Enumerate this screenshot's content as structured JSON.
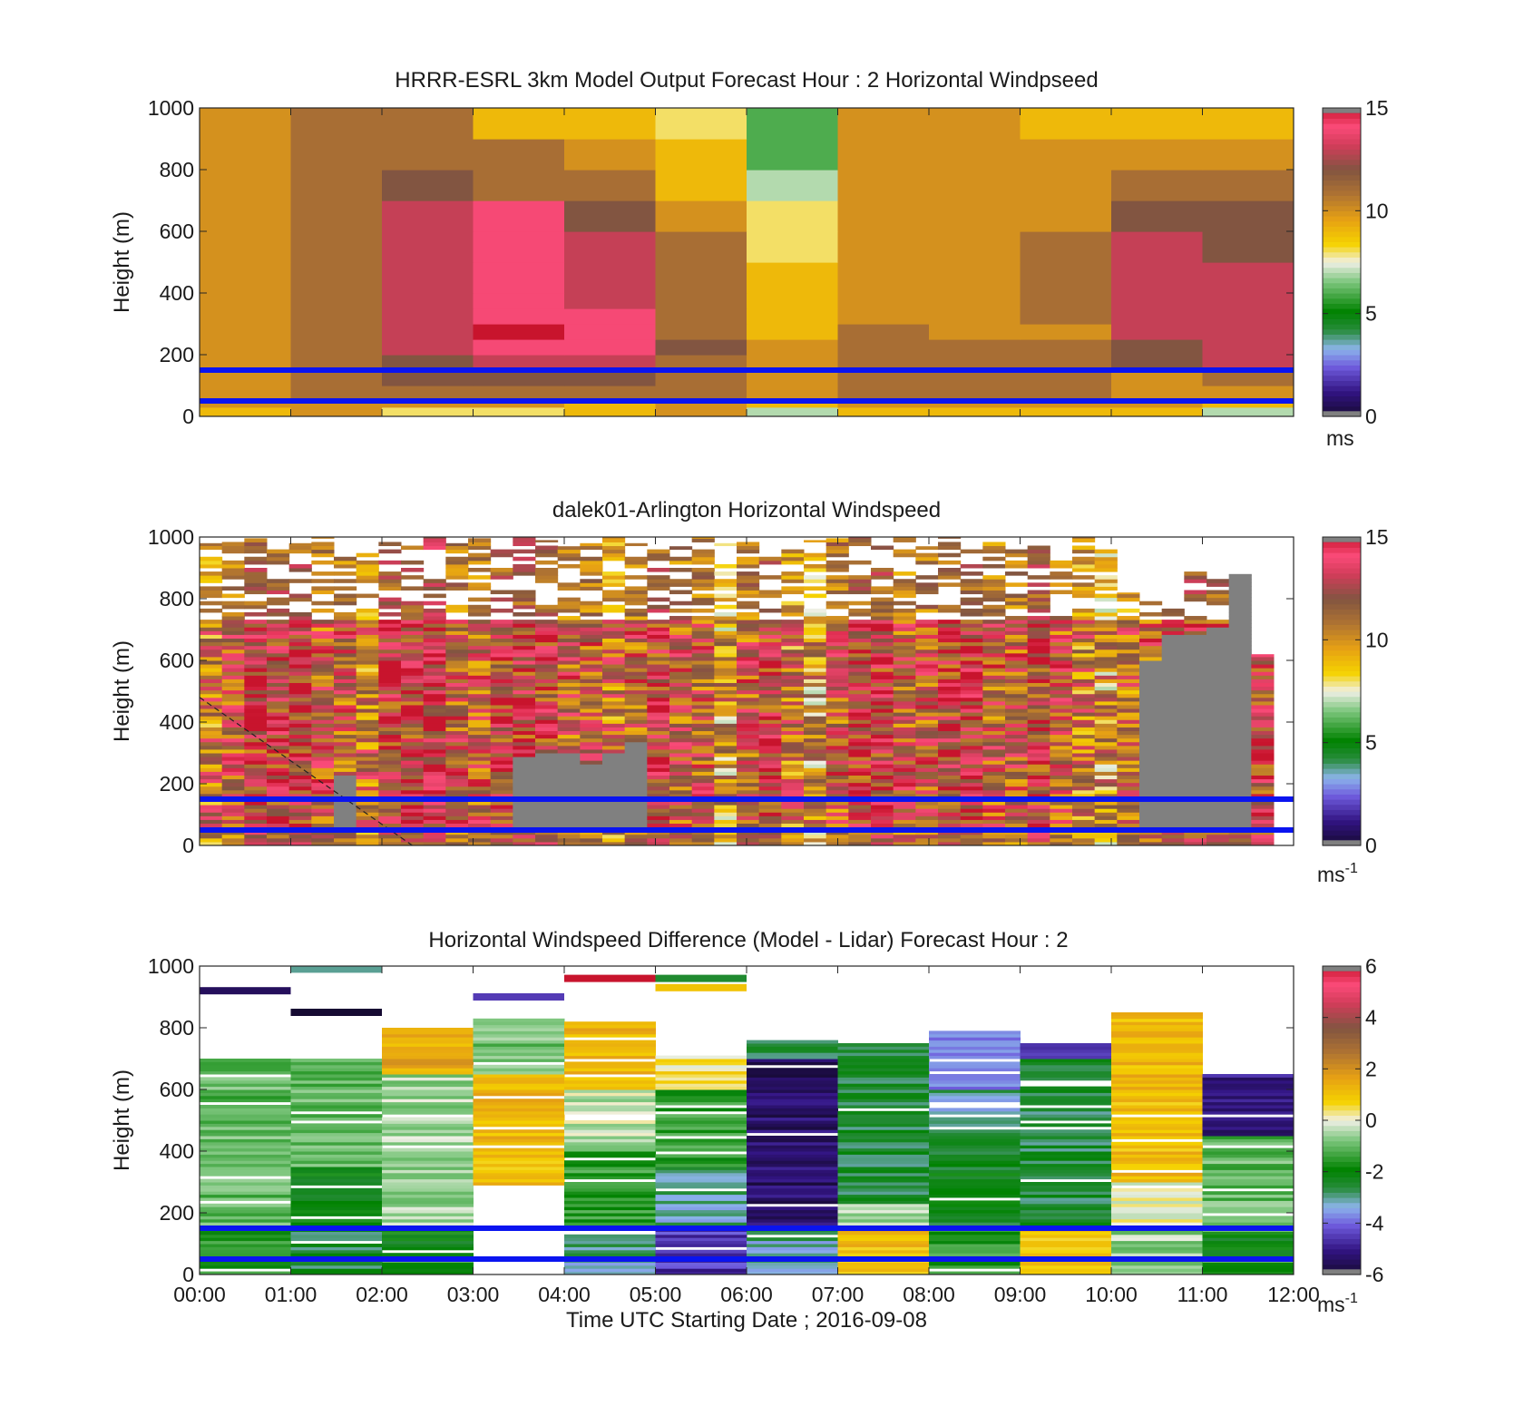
{
  "figure": {
    "xlabel": "Time UTC  Starting Date ; 2016-09-08",
    "x_ticks": [
      "00:00",
      "01:00",
      "02:00",
      "03:00",
      "04:00",
      "05:00",
      "06:00",
      "07:00",
      "08:00",
      "09:00",
      "10:00",
      "11:00",
      "12:00"
    ],
    "line_color": "#0a14f0"
  },
  "chart_data": [
    {
      "type": "heatmap",
      "title": "HRRR-ESRL 3km Model Output   Forecast Hour : 2 Horizontal Windpseed",
      "ylabel": "Height (m)",
      "y_ticks": [
        "0",
        "200",
        "400",
        "600",
        "800",
        "1000"
      ],
      "ylim": [
        0,
        1000
      ],
      "xlim": [
        "00:00",
        "12:00"
      ],
      "colorbar": {
        "ticks": [
          "0",
          "5",
          "10",
          "15"
        ],
        "range": [
          0,
          15
        ],
        "unit": "ms",
        "unit_sup": ""
      },
      "horizontal_lines_m": [
        150,
        50
      ],
      "x_bins": [
        "00:00",
        "01:00",
        "02:00",
        "03:00",
        "04:00",
        "05:00",
        "06:00",
        "07:00",
        "08:00",
        "09:00",
        "10:00",
        "11:00"
      ],
      "y_edges_m": [
        0,
        30,
        50,
        100,
        150,
        200,
        250,
        300,
        350,
        400,
        500,
        600,
        700,
        800,
        900,
        1000
      ],
      "values_ms": [
        [
          9,
          10,
          8,
          8,
          9,
          10,
          7,
          9,
          9,
          9,
          9,
          7
        ],
        [
          10,
          10,
          10,
          10,
          9,
          10,
          9,
          10,
          10,
          10,
          10,
          9
        ],
        [
          10,
          11,
          11,
          11,
          11,
          11,
          10,
          11,
          11,
          11,
          10,
          10
        ],
        [
          10,
          11,
          12,
          12,
          12,
          11,
          10,
          11,
          11,
          11,
          10,
          11
        ],
        [
          10,
          11,
          12,
          13,
          13,
          11,
          10,
          11,
          11,
          11,
          12,
          13
        ],
        [
          10,
          11,
          13,
          14,
          14,
          12,
          10,
          11,
          11,
          11,
          12,
          13
        ],
        [
          10,
          11,
          13,
          15,
          14,
          11,
          9,
          11,
          10,
          10,
          13,
          13
        ],
        [
          10,
          11,
          13,
          14,
          14,
          11,
          9,
          10,
          10,
          11,
          13,
          13
        ],
        [
          10,
          11,
          13,
          14,
          13,
          11,
          9,
          10,
          10,
          11,
          13,
          13
        ],
        [
          10,
          11,
          13,
          14,
          13,
          11,
          9,
          10,
          10,
          11,
          13,
          13
        ],
        [
          10,
          11,
          13,
          14,
          13,
          11,
          8,
          10,
          10,
          11,
          13,
          12
        ],
        [
          10,
          11,
          13,
          14,
          12,
          10,
          8,
          10,
          10,
          10,
          12,
          12
        ],
        [
          10,
          11,
          12,
          11,
          11,
          9,
          7,
          10,
          10,
          10,
          11,
          11
        ],
        [
          10,
          11,
          11,
          11,
          10,
          9,
          6,
          10,
          10,
          10,
          10,
          10
        ],
        [
          10,
          11,
          11,
          9,
          9,
          8,
          6,
          10,
          10,
          9,
          9,
          9
        ]
      ]
    },
    {
      "type": "heatmap",
      "title": "dalek01-Arlington  Horizontal Windspeed",
      "ylabel": "Height (m)",
      "y_ticks": [
        "0",
        "200",
        "400",
        "600",
        "800",
        "1000"
      ],
      "ylim": [
        0,
        1000
      ],
      "xlim": [
        "00:00",
        "12:00"
      ],
      "colorbar": {
        "ticks": [
          "0",
          "5",
          "10",
          "15"
        ],
        "range": [
          0,
          15
        ],
        "unit": "ms",
        "unit_sup": "-1"
      },
      "horizontal_lines_m": [
        150,
        50
      ],
      "dashed_line": {
        "from": {
          "x": "00:00",
          "y": 480
        },
        "to": {
          "x": "02:20",
          "y": 0
        }
      },
      "profile_count": 48,
      "valid_top_m": [
        980,
        1000,
        1000,
        960,
        980,
        1000,
        960,
        950,
        1000,
        980,
        1000,
        980,
        1000,
        960,
        1000,
        990,
        970,
        980,
        1000,
        980,
        1000,
        970,
        1000,
        980,
        1000,
        970,
        960,
        990,
        1000,
        1000,
        980,
        1000,
        970,
        1000,
        960,
        1000,
        980,
        1000,
        960,
        1000,
        960,
        820,
        800,
        790,
        900,
        880,
        880,
        620
      ],
      "gray_region_top_m": [
        0,
        0,
        0,
        0,
        0,
        0,
        220,
        0,
        0,
        0,
        0,
        0,
        0,
        0,
        280,
        290,
        300,
        260,
        300,
        330,
        0,
        0,
        0,
        0,
        0,
        0,
        0,
        0,
        0,
        0,
        0,
        0,
        0,
        0,
        0,
        0,
        0,
        0,
        0,
        0,
        0,
        0,
        600,
        680,
        680,
        700,
        880,
        0
      ],
      "mean_speed_ms": [
        11,
        12,
        13,
        13,
        13,
        12,
        12,
        11,
        13,
        13,
        14,
        12,
        12,
        13,
        13,
        13,
        12,
        12,
        11,
        12,
        13,
        12,
        12,
        10,
        12,
        13,
        11,
        10,
        12,
        13,
        13,
        12,
        12,
        13,
        13,
        12,
        12,
        13,
        12,
        11,
        10,
        11,
        12,
        13,
        13,
        13,
        13,
        13
      ]
    },
    {
      "type": "heatmap",
      "title": "Horizontal Windspeed Difference (Model - Lidar) Forecast Hour : 2",
      "ylabel": "Height (m)",
      "y_ticks": [
        "0",
        "200",
        "400",
        "600",
        "800",
        "1000"
      ],
      "ylim": [
        0,
        1000
      ],
      "xlim": [
        "00:00",
        "12:00"
      ],
      "colorbar": {
        "ticks": [
          "-6",
          "-4",
          "-2",
          "0",
          "2",
          "4",
          "6"
        ],
        "range": [
          -6,
          6
        ],
        "unit": "ms",
        "unit_sup": "-1"
      },
      "horizontal_lines_m": [
        150,
        50
      ],
      "x_bins": [
        "00:00",
        "01:00",
        "02:00",
        "03:00",
        "04:00",
        "05:00",
        "06:00",
        "07:00",
        "08:00",
        "09:00",
        "10:00",
        "11:00"
      ],
      "valid_top_m": [
        700,
        700,
        800,
        830,
        820,
        710,
        760,
        750,
        790,
        750,
        850,
        650
      ],
      "sparse_lines": [
        {
          "bin": 0,
          "y": 920,
          "value": -5.5
        },
        {
          "bin": 1,
          "y": 850,
          "value": -6
        },
        {
          "bin": 1,
          "y": 990,
          "value": -3
        },
        {
          "bin": 3,
          "y": 900,
          "value": -4.5
        },
        {
          "bin": 4,
          "y": 960,
          "value": 6
        },
        {
          "bin": 5,
          "y": 960,
          "value": -2.5
        },
        {
          "bin": 5,
          "y": 930,
          "value": 1
        }
      ],
      "layers": [
        {
          "bin": 0,
          "segments": [
            {
              "from": 0,
              "to": 150,
              "value": -1.5
            },
            {
              "from": 150,
              "to": 700,
              "value": -1
            }
          ]
        },
        {
          "bin": 1,
          "segments": [
            {
              "from": 0,
              "to": 150,
              "value": -2.5
            },
            {
              "from": 150,
              "to": 350,
              "value": -2
            },
            {
              "from": 350,
              "to": 700,
              "value": -1
            }
          ]
        },
        {
          "bin": 2,
          "segments": [
            {
              "from": 0,
              "to": 150,
              "value": -2
            },
            {
              "from": 150,
              "to": 650,
              "value": -0.5
            },
            {
              "from": 650,
              "to": 800,
              "value": 1.5
            }
          ]
        },
        {
          "bin": 3,
          "segments": [
            {
              "from": 0,
              "to": 280,
              "value": "nan"
            },
            {
              "from": 280,
              "to": 650,
              "value": 1.2
            },
            {
              "from": 650,
              "to": 830,
              "value": -0.8
            }
          ]
        },
        {
          "bin": 4,
          "segments": [
            {
              "from": 0,
              "to": 150,
              "value": -3
            },
            {
              "from": 150,
              "to": 400,
              "value": -1.5
            },
            {
              "from": 400,
              "to": 600,
              "value": -0.3
            },
            {
              "from": 600,
              "to": 820,
              "value": 1.2
            }
          ]
        },
        {
          "bin": 5,
          "segments": [
            {
              "from": 0,
              "to": 150,
              "value": -4.5
            },
            {
              "from": 150,
              "to": 350,
              "value": -3
            },
            {
              "from": 350,
              "to": 600,
              "value": -1.5
            },
            {
              "from": 600,
              "to": 710,
              "value": 0.5
            }
          ]
        },
        {
          "bin": 6,
          "segments": [
            {
              "from": 0,
              "to": 150,
              "value": -3
            },
            {
              "from": 150,
              "to": 700,
              "value": -5.3
            },
            {
              "from": 700,
              "to": 760,
              "value": -2.5
            }
          ]
        },
        {
          "bin": 7,
          "segments": [
            {
              "from": 0,
              "to": 150,
              "value": 1.2
            },
            {
              "from": 150,
              "to": 230,
              "value": -0.5
            },
            {
              "from": 230,
              "to": 750,
              "value": -2.5
            }
          ]
        },
        {
          "bin": 8,
          "segments": [
            {
              "from": 0,
              "to": 150,
              "value": -1.5
            },
            {
              "from": 150,
              "to": 450,
              "value": -2.2
            },
            {
              "from": 450,
              "to": 600,
              "value": -3
            },
            {
              "from": 600,
              "to": 790,
              "value": -4
            }
          ]
        },
        {
          "bin": 9,
          "segments": [
            {
              "from": 0,
              "to": 150,
              "value": 1
            },
            {
              "from": 150,
              "to": 700,
              "value": -2.5
            },
            {
              "from": 700,
              "to": 750,
              "value": -4.5
            }
          ]
        },
        {
          "bin": 10,
          "segments": [
            {
              "from": 0,
              "to": 150,
              "value": -0.5
            },
            {
              "from": 150,
              "to": 300,
              "value": 0
            },
            {
              "from": 300,
              "to": 850,
              "value": 1.2
            }
          ]
        },
        {
          "bin": 11,
          "segments": [
            {
              "from": 0,
              "to": 150,
              "value": -2
            },
            {
              "from": 150,
              "to": 450,
              "value": -1
            },
            {
              "from": 450,
              "to": 650,
              "value": -5
            }
          ]
        }
      ]
    }
  ]
}
